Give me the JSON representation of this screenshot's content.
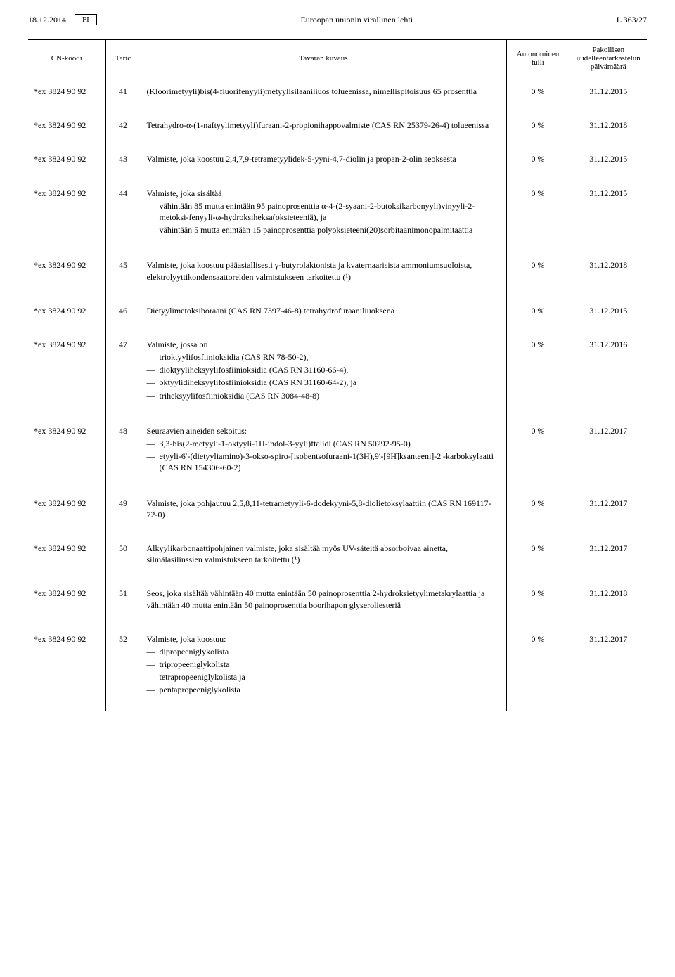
{
  "header": {
    "date": "18.12.2014",
    "lang": "FI",
    "title": "Euroopan unionin virallinen lehti",
    "page": "L 363/27"
  },
  "columns": {
    "cn": "CN-koodi",
    "taric": "Taric",
    "desc": "Tavaran kuvaus",
    "auton": "Autonominen tulli",
    "date": "Pakollisen uudelleentarkastelun päivämäärä"
  },
  "rows": [
    {
      "cn": "*ex 3824 90 92",
      "taric": "41",
      "desc_intro": "(Kloorimetyyli)bis(4-fluorifenyyli)metyylisilaaniliuos tolueenissa, nimellispitoisuus 65 prosenttia",
      "auton": "0 %",
      "date": "31.12.2015"
    },
    {
      "cn": "*ex 3824 90 92",
      "taric": "42",
      "desc_intro": "Tetrahydro-α-(1-naftyylimetyyli)furaani-2-propionihappovalmiste (CAS RN 25379-26-4) tolueenissa",
      "auton": "0 %",
      "date": "31.12.2018"
    },
    {
      "cn": "*ex 3824 90 92",
      "taric": "43",
      "desc_intro": "Valmiste, joka koostuu 2,4,7,9-tetrametyylidek-5-yyni-4,7-diolin ja propan-2-olin seoksesta",
      "auton": "0 %",
      "date": "31.12.2015"
    },
    {
      "cn": "*ex 3824 90 92",
      "taric": "44",
      "desc_intro": "Valmiste, joka sisältää",
      "items": [
        "vähintään 85 mutta enintään 95 painoprosenttia α-4-(2-syaani-2-butoksikarbonyyli)vinyyli-2-metoksi-fenyyli-ω-hydroksiheksa(oksieteeniä), ja",
        "vähintään 5 mutta enintään 15 painoprosenttia polyoksieteeni(20)sorbitaanimonopalmitaattia"
      ],
      "auton": "0 %",
      "date": "31.12.2015"
    },
    {
      "cn": "*ex 3824 90 92",
      "taric": "45",
      "desc_intro": "Valmiste, joka koostuu pääasiallisesti γ-butyrolaktonista ja kvaternaarisista ammoniumsuoloista, elektrolyyttikondensaattoreiden valmistukseen tarkoitettu (¹)",
      "auton": "0 %",
      "date": "31.12.2018"
    },
    {
      "cn": "*ex 3824 90 92",
      "taric": "46",
      "desc_intro": "Dietyylimetoksiboraani (CAS RN 7397-46-8) tetrahydrofuraaniliuoksena",
      "auton": "0 %",
      "date": "31.12.2015"
    },
    {
      "cn": "*ex 3824 90 92",
      "taric": "47",
      "desc_intro": "Valmiste, jossa on",
      "items": [
        "trioktyylifosfiinioksidia (CAS RN 78-50-2),",
        "dioktyyliheksyylifosfiinioksidia (CAS RN 31160-66-4),",
        "oktyylidiheksyylifosfiinioksidia (CAS RN 31160-64-2), ja",
        "triheksyylifosfiinioksidia (CAS RN 3084-48-8)"
      ],
      "auton": "0 %",
      "date": "31.12.2016"
    },
    {
      "cn": "*ex 3824 90 92",
      "taric": "48",
      "desc_intro": "Seuraavien aineiden sekoitus:",
      "items": [
        "3,3-bis(2-metyyli-1-oktyyli-1H-indol-3-yyli)ftalidi (CAS RN 50292-95-0)",
        "etyyli-6′-(dietyyliamino)-3-okso-spiro-[isobentsofuraani-1(3H),9′-[9H]ksanteeni]-2′-karboksylaatti (CAS RN 154306-60-2)"
      ],
      "auton": "0 %",
      "date": "31.12.2017"
    },
    {
      "cn": "*ex 3824 90 92",
      "taric": "49",
      "desc_intro": "Valmiste, joka pohjautuu 2,5,8,11-tetrametyyli-6-dodekyyni-5,8-diolietoksylaattiin (CAS RN 169117-72-0)",
      "auton": "0 %",
      "date": "31.12.2017"
    },
    {
      "cn": "*ex 3824 90 92",
      "taric": "50",
      "desc_intro": "Alkyylikarbonaattipohjainen valmiste, joka sisältää myös UV-säteitä absorboivaa ainetta, silmälasilinssien valmistukseen tarkoitettu (¹)",
      "auton": "0 %",
      "date": "31.12.2017"
    },
    {
      "cn": "*ex 3824 90 92",
      "taric": "51",
      "desc_intro": "Seos, joka sisältää vähintään 40 mutta enintään 50 painoprosenttia 2-hydroksietyylimetakrylaattia ja vähintään 40 mutta enintään 50 painoprosenttia boorihapon glyseroliesteriä",
      "auton": "0 %",
      "date": "31.12.2018"
    },
    {
      "cn": "*ex 3824 90 92",
      "taric": "52",
      "desc_intro": "Valmiste, joka koostuu:",
      "items": [
        "dipropeeniglykolista",
        "tripropeeniglykolista",
        "tetrapropeeniglykolista ja",
        "pentapropeeniglykolista"
      ],
      "auton": "0 %",
      "date": "31.12.2017"
    }
  ]
}
